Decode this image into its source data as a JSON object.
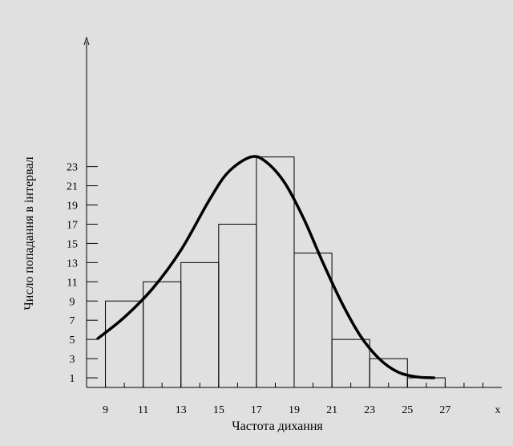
{
  "chart_data": {
    "type": "bar",
    "title": "",
    "xlabel": "Частота дихання",
    "ylabel": "Число попадання в інтервал",
    "x_axis_end_label": "x",
    "x_tick_labels": [
      "9",
      "11",
      "13",
      "15",
      "17",
      "19",
      "21",
      "23",
      "25",
      "27"
    ],
    "y_tick_labels": [
      "1",
      "3",
      "5",
      "7",
      "9",
      "11",
      "13",
      "15",
      "17",
      "19",
      "21",
      "23"
    ],
    "xlim": [
      8,
      30
    ],
    "ylim": [
      0,
      36
    ],
    "bins": [
      {
        "x0": 9,
        "x1": 11,
        "value": 9
      },
      {
        "x0": 11,
        "x1": 13,
        "value": 11
      },
      {
        "x0": 13,
        "x1": 15,
        "value": 13
      },
      {
        "x0": 15,
        "x1": 17,
        "value": 17
      },
      {
        "x0": 17,
        "x1": 19,
        "value": 24
      },
      {
        "x0": 19,
        "x1": 21,
        "value": 14
      },
      {
        "x0": 21,
        "x1": 23,
        "value": 5
      },
      {
        "x0": 23,
        "x1": 25,
        "value": 3
      },
      {
        "x0": 25,
        "x1": 27,
        "value": 1
      }
    ],
    "curve": {
      "type": "line",
      "x": [
        8.6,
        10,
        11.5,
        13,
        14.5,
        15.5,
        16.7,
        17.5,
        18.5,
        19.5,
        20.5,
        21.5,
        22.5,
        23.5,
        24.5,
        25.5,
        26.4
      ],
      "y": [
        5.1,
        7.3,
        10.3,
        14.3,
        19.5,
        22.4,
        24,
        23.5,
        21.3,
        17.6,
        13.1,
        8.9,
        5.4,
        3,
        1.6,
        1.1,
        1
      ]
    }
  }
}
